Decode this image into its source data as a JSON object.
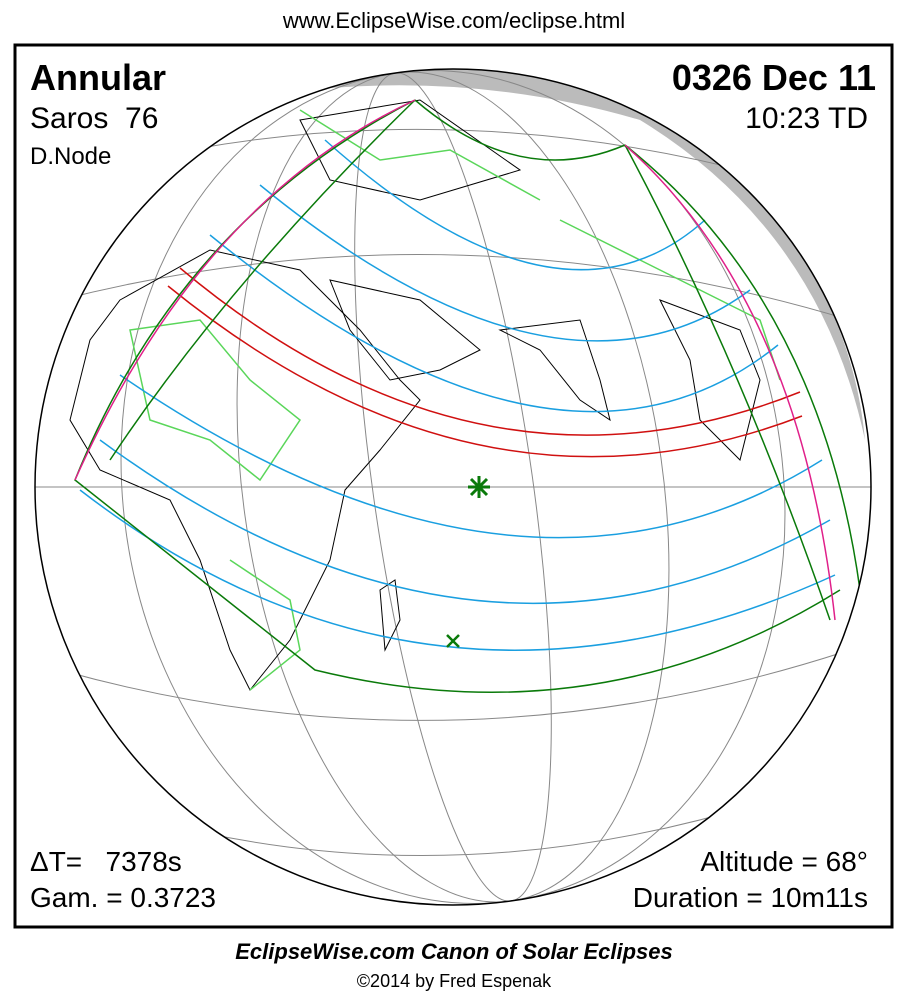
{
  "header": {
    "url": "www.EclipseWise.com/eclipse.html"
  },
  "eclipse": {
    "type": "Annular",
    "saros": "Saros  76",
    "node": "D.Node",
    "date": "0326 Dec 11",
    "time": "10:23 TD",
    "delta_t": "ΔT=   7378s",
    "gamma": "Gam. = 0.3723",
    "altitude": "Altitude = 68°",
    "duration": "Duration = 10m11s"
  },
  "footer": {
    "title": "EclipseWise.com Canon of Solar Eclipses",
    "copyright": "©2014 by Fred Espenak"
  }
}
